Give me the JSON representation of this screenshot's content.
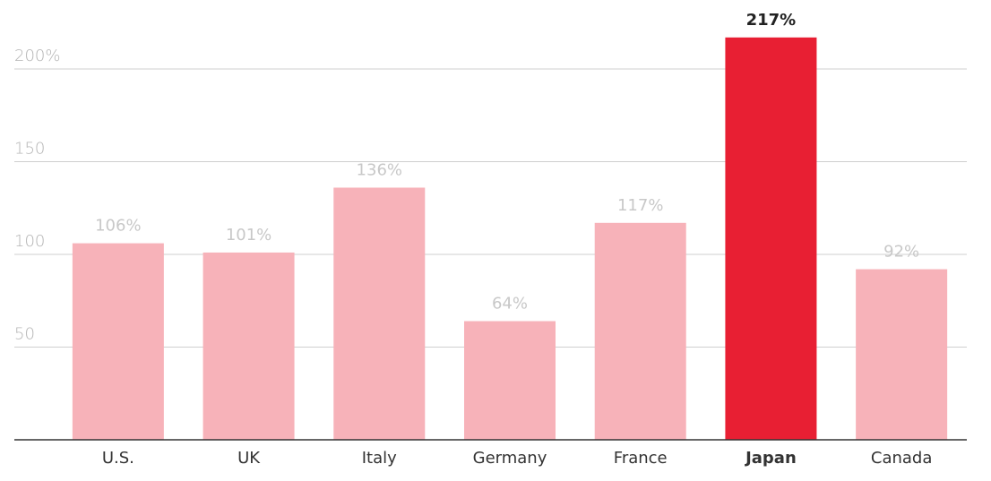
{
  "chart_data": {
    "type": "bar",
    "categories": [
      "U.S.",
      "UK",
      "Italy",
      "Germany",
      "France",
      "Japan",
      "Canada"
    ],
    "values": [
      106,
      101,
      136,
      64,
      117,
      217,
      92
    ],
    "value_labels": [
      "106%",
      "101%",
      "136%",
      "64%",
      "117%",
      "217%",
      "92%"
    ],
    "color": "#f7b2b9",
    "colors": [
      "#f7b2b9",
      "#f7b2b9",
      "#f7b2b9",
      "#f7b2b9",
      "#f7b2b9",
      "#e81f33",
      "#f7b2b9"
    ],
    "ylim": [
      0,
      222
    ],
    "yticks": [
      {
        "value": 200,
        "label": "200%"
      },
      150,
      100,
      50
    ],
    "grid": true
  }
}
